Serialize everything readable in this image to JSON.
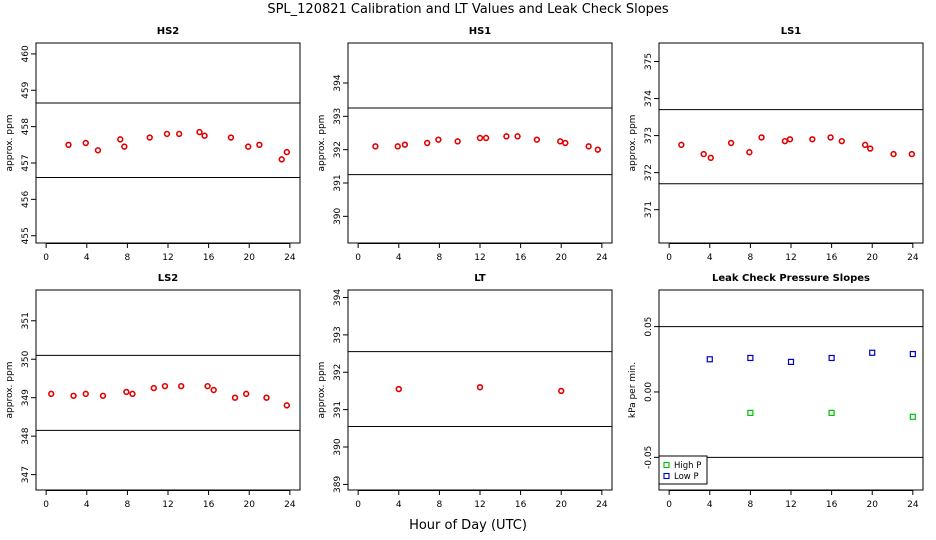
{
  "figure": {
    "title": "SPL_120821  Calibration and LT Values and Leak Check Slopes",
    "xlabel": "Hour of Day (UTC)"
  },
  "colors": {
    "cal": "#e00000",
    "high": "#00c000",
    "low": "#0000c0",
    "axis": "#000000"
  },
  "chart_data": [
    {
      "type": "scatter",
      "title": "HS2",
      "ylabel": "approx. ppm",
      "xlim": [
        -1,
        25
      ],
      "ylim": [
        454.8,
        460.3
      ],
      "xticks": [
        0,
        4,
        8,
        12,
        16,
        20,
        24
      ],
      "yticks": [
        455,
        456,
        457,
        458,
        459,
        460
      ],
      "hlines": [
        458.65,
        456.6
      ],
      "series": [
        {
          "marker": "circle",
          "color": "#e00000",
          "x": [
            2.2,
            3.9,
            5.1,
            7.3,
            7.7,
            10.2,
            11.9,
            13.1,
            15.1,
            15.6,
            18.2,
            19.9,
            21.0,
            23.2,
            23.7
          ],
          "y": [
            457.5,
            457.55,
            457.35,
            457.65,
            457.45,
            457.7,
            457.8,
            457.8,
            457.85,
            457.75,
            457.7,
            457.45,
            457.5,
            457.1,
            457.3
          ]
        }
      ]
    },
    {
      "type": "scatter",
      "title": "HS1",
      "ylabel": "approx. ppm",
      "xlim": [
        -1,
        25
      ],
      "ylim": [
        389.2,
        395.2
      ],
      "xticks": [
        0,
        4,
        8,
        12,
        16,
        20,
        24
      ],
      "yticks": [
        390,
        391,
        392,
        393,
        394
      ],
      "hlines": [
        393.25,
        391.25
      ],
      "series": [
        {
          "marker": "circle",
          "color": "#e00000",
          "x": [
            1.7,
            3.9,
            4.6,
            6.8,
            7.9,
            9.8,
            12.0,
            12.6,
            14.6,
            15.7,
            17.6,
            19.9,
            20.4,
            22.7,
            23.6
          ],
          "y": [
            392.1,
            392.1,
            392.15,
            392.2,
            392.3,
            392.25,
            392.35,
            392.35,
            392.4,
            392.4,
            392.3,
            392.25,
            392.2,
            392.1,
            392.0
          ]
        }
      ]
    },
    {
      "type": "scatter",
      "title": "LS1",
      "ylabel": "approx. ppm",
      "xlim": [
        -1,
        25
      ],
      "ylim": [
        370.1,
        375.5
      ],
      "xticks": [
        0,
        4,
        8,
        12,
        16,
        20,
        24
      ],
      "yticks": [
        371,
        372,
        373,
        374,
        375
      ],
      "hlines": [
        373.7,
        371.7
      ],
      "series": [
        {
          "marker": "circle",
          "color": "#e00000",
          "x": [
            1.2,
            3.4,
            4.1,
            6.1,
            7.9,
            9.1,
            11.4,
            11.9,
            14.1,
            15.9,
            17.0,
            19.3,
            19.8,
            22.1,
            23.9
          ],
          "y": [
            372.75,
            372.5,
            372.4,
            372.8,
            372.55,
            372.95,
            372.85,
            372.9,
            372.9,
            372.95,
            372.85,
            372.75,
            372.65,
            372.5,
            372.5
          ]
        }
      ]
    },
    {
      "type": "scatter",
      "title": "LS2",
      "ylabel": "approx. ppm",
      "xlim": [
        -1,
        25
      ],
      "ylim": [
        346.6,
        351.8
      ],
      "xticks": [
        0,
        4,
        8,
        12,
        16,
        20,
        24
      ],
      "yticks": [
        347,
        348,
        349,
        350,
        351
      ],
      "hlines": [
        350.1,
        348.15
      ],
      "series": [
        {
          "marker": "circle",
          "color": "#e00000",
          "x": [
            0.5,
            2.7,
            3.9,
            5.6,
            7.9,
            8.5,
            10.6,
            11.7,
            13.3,
            15.9,
            16.5,
            18.6,
            19.7,
            21.7,
            23.7
          ],
          "y": [
            349.1,
            349.05,
            349.1,
            349.05,
            349.15,
            349.1,
            349.25,
            349.3,
            349.3,
            349.3,
            349.2,
            349.0,
            349.1,
            349.0,
            348.8
          ]
        }
      ]
    },
    {
      "type": "scatter",
      "title": "LT",
      "ylabel": "approx. ppm",
      "xlim": [
        -1,
        25
      ],
      "ylim": [
        388.85,
        394.2
      ],
      "xticks": [
        0,
        4,
        8,
        12,
        16,
        20,
        24
      ],
      "yticks": [
        389,
        390,
        391,
        392,
        393,
        394
      ],
      "hlines": [
        392.55,
        390.55
      ],
      "series": [
        {
          "marker": "circle",
          "color": "#e00000",
          "x": [
            4.0,
            12.0,
            20.0
          ],
          "y": [
            391.55,
            391.6,
            391.5
          ]
        }
      ]
    },
    {
      "type": "scatter",
      "title": "Leak Check Pressure Slopes",
      "ylabel": "kPa per min.",
      "xlim": [
        -1,
        25
      ],
      "ylim": [
        -0.075,
        0.078
      ],
      "xticks": [
        0,
        4,
        8,
        12,
        16,
        20,
        24
      ],
      "yticks": [
        -0.05,
        0.0,
        0.05
      ],
      "ytick_labels": [
        "-0.05",
        "0.00",
        "0.05"
      ],
      "hlines": [
        0.05,
        -0.05
      ],
      "legend": {
        "position": "bottom-left",
        "entries": [
          "High P",
          "Low P"
        ]
      },
      "series": [
        {
          "name": "High P",
          "marker": "square",
          "color": "#00c000",
          "x": [
            8,
            16,
            24
          ],
          "y": [
            -0.016,
            -0.016,
            -0.019
          ]
        },
        {
          "name": "Low P",
          "marker": "square",
          "color": "#0000c0",
          "x": [
            4,
            8,
            12,
            16,
            20,
            24
          ],
          "y": [
            0.025,
            0.026,
            0.023,
            0.026,
            0.03,
            0.029
          ]
        }
      ]
    }
  ]
}
